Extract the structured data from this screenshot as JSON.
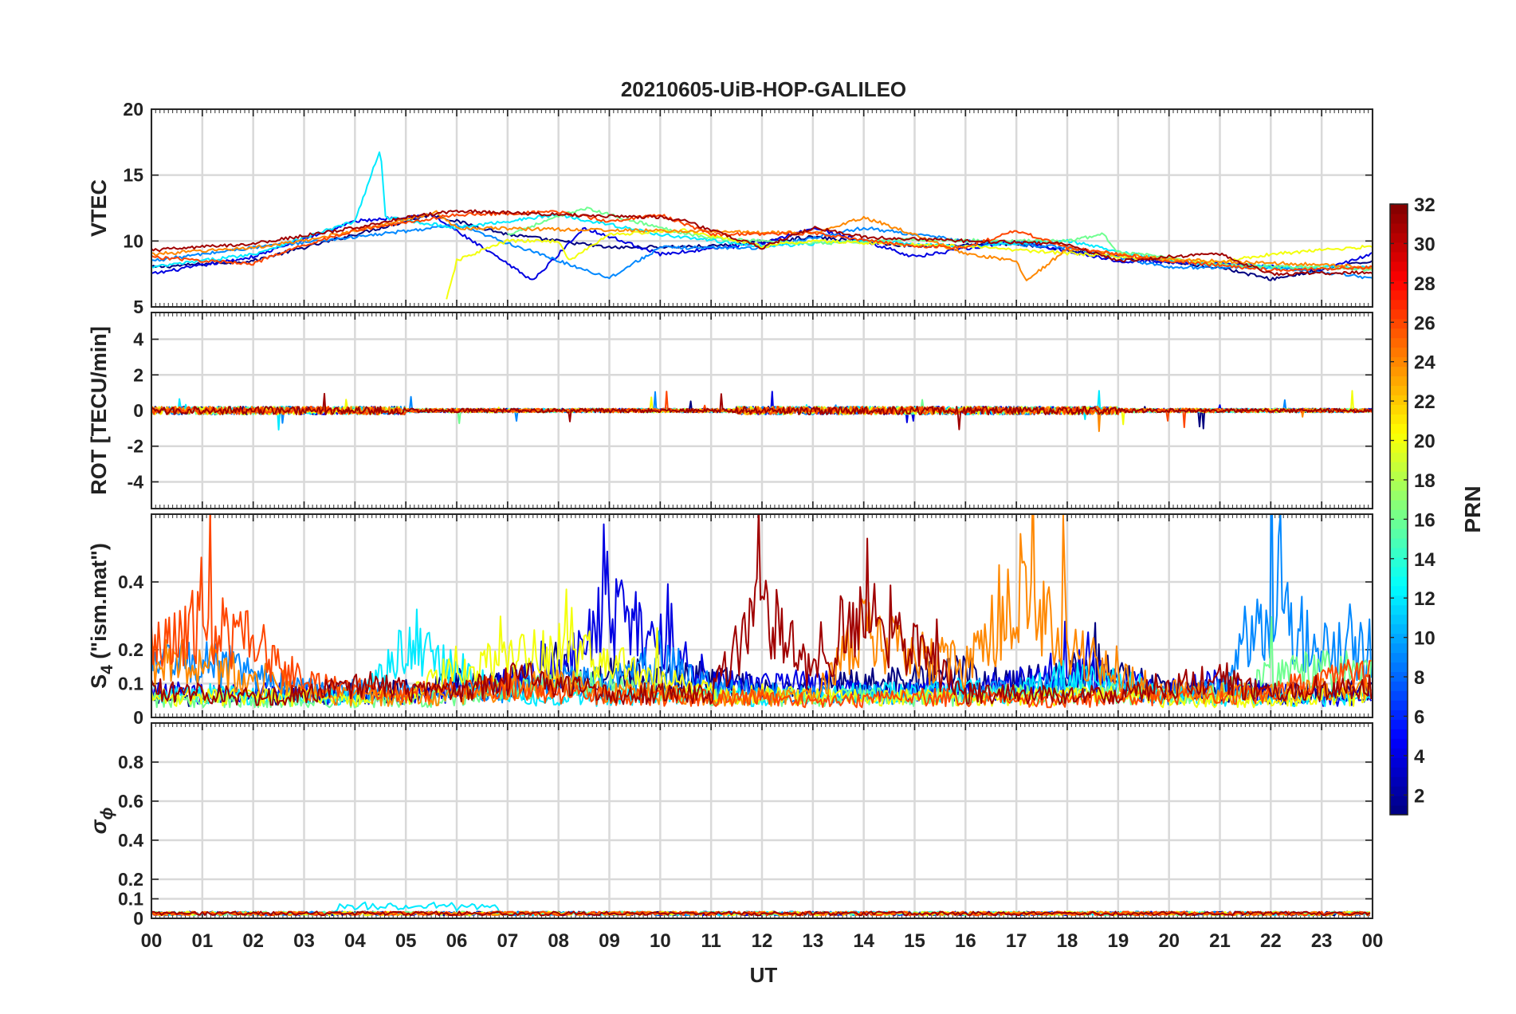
{
  "chart_data": {
    "type": "line",
    "title": "20210605-UiB-HOP-GALILEO",
    "xlabel": "UT",
    "xlim": [
      0,
      24
    ],
    "x_ticks": [
      "00",
      "01",
      "02",
      "03",
      "04",
      "05",
      "06",
      "07",
      "08",
      "09",
      "10",
      "11",
      "12",
      "13",
      "14",
      "15",
      "16",
      "17",
      "18",
      "19",
      "20",
      "21",
      "22",
      "23",
      "00"
    ],
    "grid": true,
    "panels": [
      {
        "id": "vtec",
        "ylabel": "VTEC",
        "ylim": [
          5,
          20
        ],
        "y_ticks": [
          {
            "v": 5,
            "label": "5"
          },
          {
            "v": 10,
            "label": "10"
          },
          {
            "v": 15,
            "label": "15"
          },
          {
            "v": 20,
            "label": "20"
          }
        ]
      },
      {
        "id": "rot",
        "ylabel": "ROT [TECU/min]",
        "ylim": [
          -5.5,
          5.5
        ],
        "y_ticks": [
          {
            "v": -4,
            "label": "-4"
          },
          {
            "v": -2,
            "label": "-2"
          },
          {
            "v": 0,
            "label": "0"
          },
          {
            "v": 2,
            "label": "2"
          },
          {
            "v": 4,
            "label": "4"
          }
        ]
      },
      {
        "id": "s4",
        "ylabel": "S",
        "ylabel_sub": "4",
        "ylabel_suffix": " (\"ism.mat\")",
        "ylim": [
          0,
          0.6
        ],
        "y_ticks": [
          {
            "v": 0,
            "label": "0"
          },
          {
            "v": 0.1,
            "label": "0.1"
          },
          {
            "v": 0.2,
            "label": "0.2"
          },
          {
            "v": 0.4,
            "label": "0.4"
          }
        ]
      },
      {
        "id": "sigma",
        "ylabel": "σ",
        "ylabel_sub": "ϕ",
        "ylim": [
          0,
          1
        ],
        "y_ticks": [
          {
            "v": 0,
            "label": "0"
          },
          {
            "v": 0.1,
            "label": "0.1"
          },
          {
            "v": 0.2,
            "label": "0.2"
          },
          {
            "v": 0.4,
            "label": "0.4"
          },
          {
            "v": 0.6,
            "label": "0.6"
          },
          {
            "v": 0.8,
            "label": "0.8"
          }
        ]
      }
    ],
    "colorbar": {
      "label": "PRN",
      "range": [
        1,
        32
      ],
      "ticks": [
        2,
        4,
        6,
        8,
        10,
        12,
        14,
        16,
        18,
        20,
        22,
        24,
        26,
        28,
        30,
        32
      ],
      "colormap": "jet"
    },
    "series": [
      {
        "prn": 1,
        "pass": [
          0,
          24
        ],
        "vtec": [
          [
            0,
            8.0
          ],
          [
            2,
            8.5
          ],
          [
            4,
            10.5
          ],
          [
            5.5,
            12.0
          ],
          [
            7,
            10.5
          ],
          [
            9,
            9.5
          ],
          [
            11,
            9.6
          ],
          [
            13,
            10.3
          ],
          [
            15,
            9.6
          ],
          [
            17,
            9.8
          ],
          [
            19,
            8.8
          ],
          [
            21,
            8.0
          ],
          [
            22,
            7.1
          ],
          [
            23,
            7.8
          ],
          [
            24,
            8.5
          ]
        ],
        "s4": [
          0.06,
          0.06,
          0.06,
          0.07,
          0.07,
          0.08,
          0.1,
          0.1,
          0.13,
          0.13,
          0.11,
          0.12,
          0.08,
          0.08,
          0.11,
          0.11,
          0.13,
          0.1,
          0.14,
          0.12,
          0.08,
          0.08,
          0.07,
          0.08
        ]
      },
      {
        "prn": 4,
        "pass": [
          0,
          24
        ],
        "vtec": [
          [
            0,
            7.5
          ],
          [
            2,
            8.8
          ],
          [
            4,
            11.5
          ],
          [
            5.5,
            12.0
          ],
          [
            7.5,
            7.0
          ],
          [
            8.5,
            11.0
          ],
          [
            10,
            9.0
          ],
          [
            12,
            9.8
          ],
          [
            13,
            11.0
          ],
          [
            14,
            10.0
          ],
          [
            15,
            8.8
          ],
          [
            17,
            10.0
          ],
          [
            19,
            8.5
          ],
          [
            21,
            8.3
          ],
          [
            23,
            7.8
          ],
          [
            24,
            9.0
          ]
        ],
        "s4": [
          0.08,
          0.07,
          0.07,
          0.07,
          0.06,
          0.06,
          0.08,
          0.1,
          0.14,
          0.3,
          0.22,
          0.1,
          0.09,
          0.1,
          0.08,
          0.08,
          0.08,
          0.1,
          0.15,
          0.1,
          0.08,
          0.1,
          0.07,
          0.06
        ]
      },
      {
        "prn": 9,
        "pass": [
          0,
          24
        ],
        "vtec": [
          [
            0,
            8.5
          ],
          [
            2,
            9.5
          ],
          [
            4,
            10.3
          ],
          [
            6,
            11.2
          ],
          [
            8,
            8.5
          ],
          [
            9,
            7.2
          ],
          [
            10,
            9.5
          ],
          [
            12,
            9.5
          ],
          [
            14,
            11.0
          ],
          [
            16,
            10.0
          ],
          [
            18,
            9.5
          ],
          [
            20,
            8.0
          ],
          [
            22,
            8.0
          ],
          [
            24,
            7.2
          ]
        ],
        "s4": [
          0.2,
          0.16,
          0.12,
          0.08,
          0.08,
          0.07,
          0.07,
          0.08,
          0.12,
          0.1,
          0.17,
          0.09,
          0.07,
          0.07,
          0.07,
          0.07,
          0.08,
          0.08,
          0.1,
          0.08,
          0.07,
          0.08,
          0.32,
          0.2
        ]
      },
      {
        "prn": 12,
        "pass": [
          0,
          24
        ],
        "vtec": [
          [
            0,
            8.0
          ],
          [
            2,
            9.0
          ],
          [
            4,
            11.5
          ],
          [
            4.5,
            17.0
          ],
          [
            4.6,
            11.8
          ],
          [
            6,
            11.0
          ],
          [
            8,
            12.0
          ],
          [
            10,
            10.5
          ],
          [
            12,
            9.6
          ],
          [
            14,
            10.0
          ],
          [
            16,
            9.6
          ],
          [
            18,
            10.0
          ],
          [
            20,
            8.5
          ],
          [
            22,
            8.0
          ],
          [
            24,
            8.0
          ]
        ],
        "s4": [
          0.08,
          0.07,
          0.06,
          0.06,
          0.06,
          0.2,
          0.15,
          0.06,
          0.06,
          0.06,
          0.07,
          0.06,
          0.06,
          0.07,
          0.07,
          0.08,
          0.08,
          0.07,
          0.12,
          0.11,
          0.07,
          0.06,
          0.06,
          0.06
        ]
      },
      {
        "prn": 16,
        "pass": [
          0,
          24
        ],
        "vtec": [
          [
            7,
            10.5
          ],
          [
            8.5,
            12.5
          ],
          [
            10,
            11.0
          ],
          [
            11,
            10.2
          ],
          [
            13,
            9.8
          ],
          [
            15,
            10.1
          ],
          [
            17,
            10.0
          ],
          [
            18,
            10.0
          ],
          [
            18.7,
            10.5
          ],
          [
            19,
            9.2
          ],
          [
            21,
            8.2
          ],
          [
            23,
            8.0
          ],
          [
            24,
            7.8
          ]
        ],
        "s4": [
          0.05,
          0.05,
          0.05,
          0.05,
          0.05,
          0.05,
          0.06,
          0.08,
          0.1,
          0.09,
          0.07,
          0.06,
          0.06,
          0.06,
          0.06,
          0.06,
          0.06,
          0.07,
          0.07,
          0.07,
          0.06,
          0.07,
          0.12,
          0.14
        ]
      },
      {
        "prn": 20,
        "pass": [
          0,
          24
        ],
        "vtec": [
          [
            5.8,
            5.5
          ],
          [
            6,
            8.5
          ],
          [
            6.5,
            9.3
          ],
          [
            7,
            10.0
          ],
          [
            8,
            10.0
          ],
          [
            8.2,
            8.5
          ],
          [
            9,
            10.5
          ],
          [
            10.5,
            10.8
          ],
          [
            12,
            9.6
          ],
          [
            13,
            10.0
          ],
          [
            16,
            9.6
          ],
          [
            19,
            8.8
          ],
          [
            21,
            8.4
          ],
          [
            22,
            9.0
          ],
          [
            24,
            9.6
          ]
        ],
        "s4": [
          0.06,
          0.06,
          0.06,
          0.06,
          0.06,
          0.06,
          0.15,
          0.16,
          0.2,
          0.16,
          0.12,
          0.07,
          0.07,
          0.06,
          0.06,
          0.06,
          0.06,
          0.06,
          0.06,
          0.07,
          0.05,
          0.05,
          0.05,
          0.06
        ]
      },
      {
        "prn": 24,
        "pass": [
          0,
          24
        ],
        "vtec": [
          [
            0,
            9.0
          ],
          [
            2,
            9.5
          ],
          [
            3,
            10.0
          ],
          [
            5,
            11.6
          ],
          [
            5.6,
            12.2
          ],
          [
            6,
            11.0
          ],
          [
            13,
            10.6
          ],
          [
            14,
            11.8
          ],
          [
            15,
            10.5
          ],
          [
            16,
            9.0
          ],
          [
            17,
            8.5
          ],
          [
            17.2,
            7.0
          ],
          [
            18,
            9.4
          ],
          [
            20,
            8.6
          ],
          [
            23,
            8.2
          ],
          [
            24,
            8.0
          ]
        ],
        "s4": [
          0.16,
          0.16,
          0.12,
          0.08,
          0.06,
          0.06,
          0.06,
          0.09,
          0.1,
          0.08,
          0.07,
          0.06,
          0.06,
          0.06,
          0.25,
          0.18,
          0.15,
          0.35,
          0.22,
          0.12,
          0.08,
          0.07,
          0.07,
          0.08
        ]
      },
      {
        "prn": 26,
        "pass": [
          0,
          24
        ],
        "vtec": [
          [
            0,
            8.8
          ],
          [
            1,
            8.5
          ],
          [
            2,
            8.3
          ],
          [
            3,
            9.7
          ],
          [
            4,
            10.8
          ],
          [
            6,
            12.0
          ],
          [
            8,
            12.2
          ],
          [
            9,
            11.5
          ],
          [
            10,
            12.0
          ],
          [
            11,
            10.5
          ],
          [
            13,
            10.6
          ],
          [
            15,
            9.6
          ],
          [
            16,
            9.5
          ],
          [
            17,
            10.8
          ],
          [
            18,
            9.5
          ],
          [
            20,
            8.5
          ],
          [
            22,
            7.8
          ],
          [
            24,
            8.0
          ]
        ],
        "s4": [
          0.2,
          0.28,
          0.22,
          0.1,
          0.08,
          0.07,
          0.08,
          0.09,
          0.07,
          0.06,
          0.06,
          0.06,
          0.06,
          0.05,
          0.05,
          0.06,
          0.06,
          0.05,
          0.05,
          0.06,
          0.06,
          0.07,
          0.07,
          0.12
        ]
      },
      {
        "prn": 31,
        "pass": [
          0,
          24
        ],
        "vtec": [
          [
            0,
            9.3
          ],
          [
            2,
            9.8
          ],
          [
            4,
            11.0
          ],
          [
            5,
            11.8
          ],
          [
            6,
            12.3
          ],
          [
            8,
            12.0
          ],
          [
            10,
            11.8
          ],
          [
            10.5,
            11.5
          ],
          [
            12,
            9.5
          ],
          [
            13,
            11.0
          ],
          [
            14,
            10.3
          ],
          [
            16,
            10.0
          ],
          [
            18,
            9.8
          ],
          [
            19,
            8.5
          ],
          [
            20,
            8.8
          ],
          [
            21,
            9.0
          ],
          [
            22,
            7.5
          ],
          [
            24,
            7.6
          ]
        ],
        "s4": [
          0.08,
          0.07,
          0.06,
          0.07,
          0.1,
          0.08,
          0.07,
          0.12,
          0.1,
          0.07,
          0.07,
          0.07,
          0.32,
          0.12,
          0.3,
          0.2,
          0.07,
          0.07,
          0.07,
          0.07,
          0.1,
          0.12,
          0.07,
          0.09
        ]
      }
    ]
  }
}
